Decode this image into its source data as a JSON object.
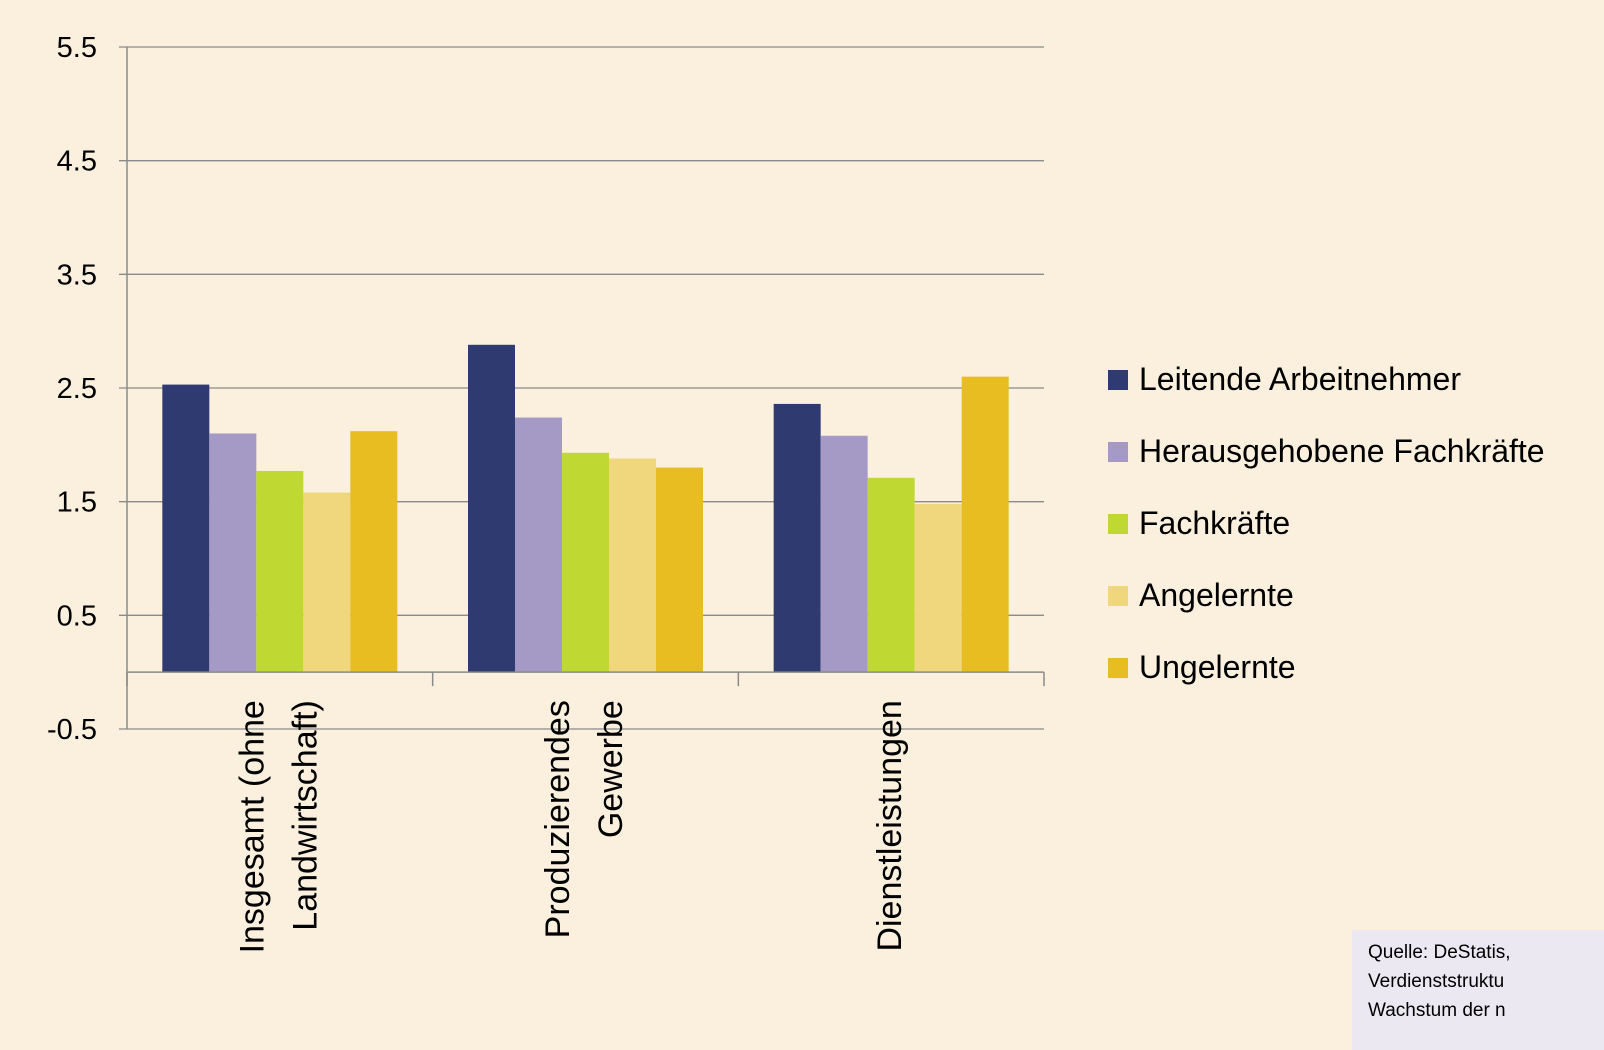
{
  "chart_data": {
    "type": "bar",
    "categories": [
      [
        "Insgesamt (ohne",
        "Landwirtschaft)"
      ],
      [
        "Produzierendes",
        "Gewerbe"
      ],
      [
        "Dienstleistungen"
      ]
    ],
    "series": [
      {
        "name": "Leitende Arbeitnehmer",
        "color": "#2e3a70",
        "values": [
          2.53,
          2.88,
          2.36
        ]
      },
      {
        "name": "Herausgehobene Fachkräfte",
        "color": "#a59ac5",
        "values": [
          2.1,
          2.24,
          2.08
        ]
      },
      {
        "name": "Fachkräfte",
        "color": "#bfd832",
        "values": [
          1.77,
          1.93,
          1.71
        ]
      },
      {
        "name": "Angelernte",
        "color": "#f0d67c",
        "values": [
          1.58,
          1.88,
          1.48
        ]
      },
      {
        "name": "Ungelernte",
        "color": "#e7bd22",
        "values": [
          2.12,
          1.8,
          2.6
        ]
      }
    ],
    "yticks": [
      "5.5",
      "4.5",
      "3.5",
      "2.5",
      "1.5",
      "0.5",
      "-0.5"
    ],
    "ylim": [
      -0.5,
      5.5
    ],
    "grid": true,
    "legend_position": "right"
  },
  "source": {
    "lines": [
      "Quelle: DeStatis,",
      "Verdienststruktu",
      "Wachstum der n"
    ]
  }
}
